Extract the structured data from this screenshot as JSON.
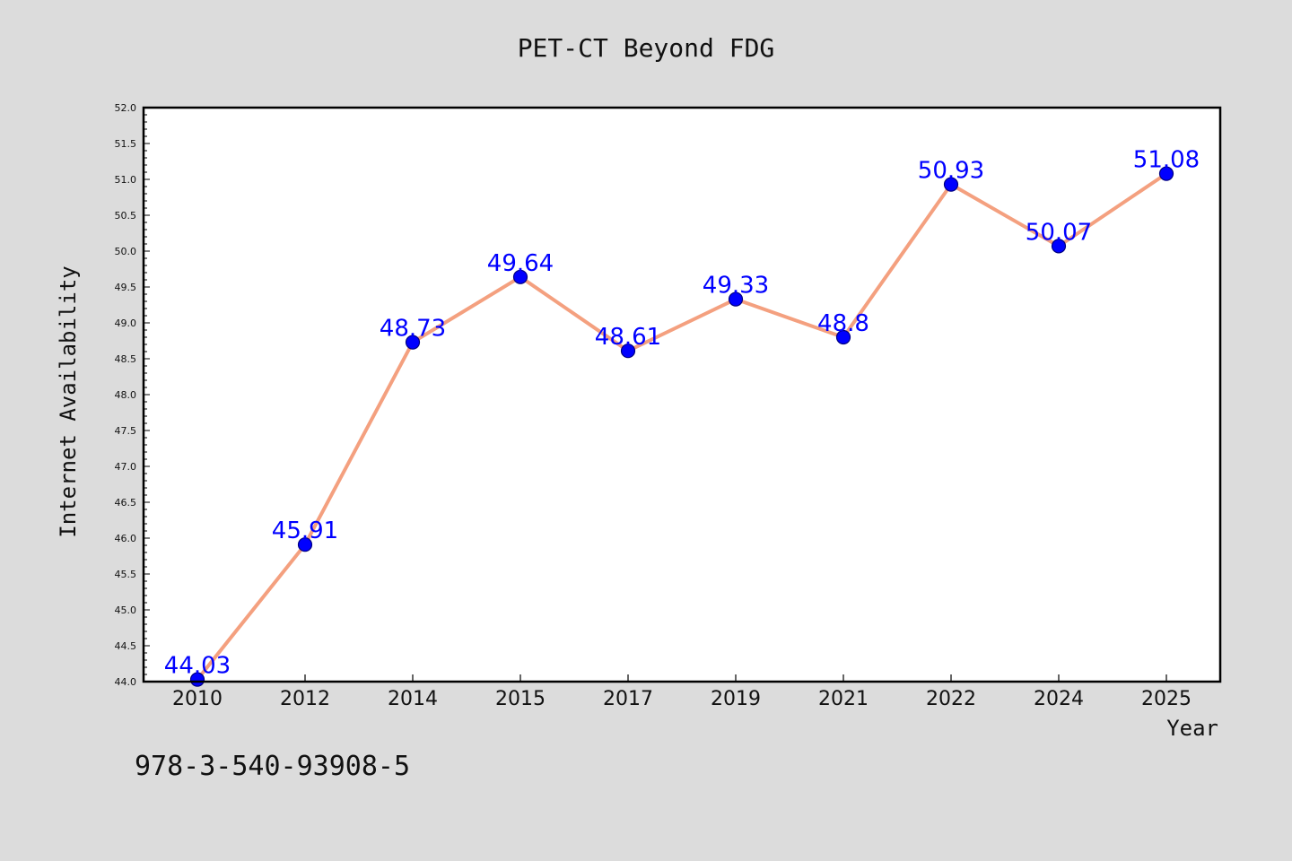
{
  "page": {
    "footer_code": "978-3-540-93908-5"
  },
  "chart_data": {
    "type": "line",
    "title": "PET-CT Beyond FDG",
    "xlabel": "Year",
    "ylabel": "Internet Availability",
    "categories": [
      "2010",
      "2012",
      "2014",
      "2015",
      "2017",
      "2019",
      "2021",
      "2022",
      "2024",
      "2025"
    ],
    "series": [
      {
        "values": [
          44.03,
          45.91,
          48.73,
          49.64,
          48.61,
          49.33,
          48.8,
          50.93,
          50.07,
          51.08
        ],
        "data_labels": [
          "44.03",
          "45.91",
          "48.73",
          "49.64",
          "48.61",
          "49.33",
          "48.8",
          "50.93",
          "50.07",
          "51.08"
        ]
      }
    ],
    "ylim": [
      44.0,
      52.0
    ],
    "yticks": [
      "44.0",
      "44.5",
      "45.0",
      "45.5",
      "46.0",
      "46.5",
      "47.0",
      "47.5",
      "48.0",
      "48.5",
      "49.0",
      "49.5",
      "50.0",
      "50.5",
      "51.0",
      "51.5",
      "52.0"
    ],
    "grid": false,
    "legend": "none",
    "colors": {
      "line": "#f4a07f",
      "marker": "#0000ff",
      "marker_edge": "#000080",
      "label": "#0000ff",
      "background": "#dcdcdc",
      "plot_background": "#ffffff"
    }
  }
}
